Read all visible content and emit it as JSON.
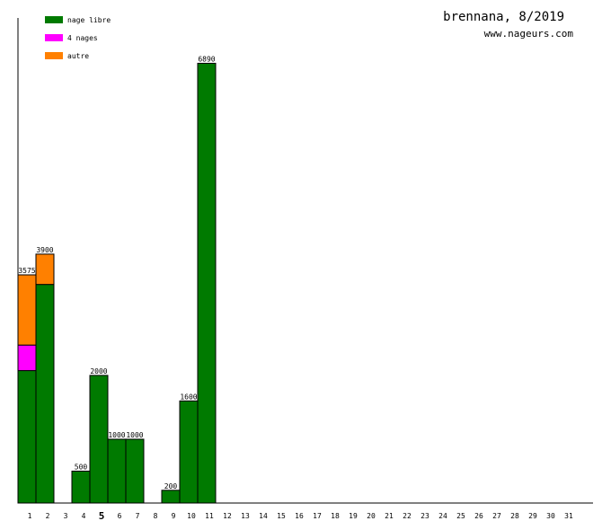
{
  "chart_data": {
    "type": "bar",
    "stacked": true,
    "title": "brennana, 8/2019",
    "subtitle": "www.nageurs.com",
    "categories": [
      "1",
      "2",
      "3",
      "4",
      "5",
      "6",
      "7",
      "8",
      "9",
      "10",
      "11",
      "12",
      "13",
      "14",
      "15",
      "16",
      "17",
      "18",
      "19",
      "20",
      "21",
      "22",
      "23",
      "24",
      "25",
      "26",
      "27",
      "28",
      "29",
      "30",
      "31"
    ],
    "highlighted_category": "5",
    "ylim": [
      0,
      7600
    ],
    "legend_position": "top-left",
    "grid": false,
    "series": [
      {
        "name": "nage libre",
        "color": "#007a00",
        "values": [
          2075,
          3425,
          0,
          500,
          2000,
          1000,
          1000,
          0,
          200,
          1600,
          6890,
          0,
          0,
          0,
          0,
          0,
          0,
          0,
          0,
          0,
          0,
          0,
          0,
          0,
          0,
          0,
          0,
          0,
          0,
          0,
          0
        ]
      },
      {
        "name": "4 nages",
        "color": "#ff00ff",
        "values": [
          400,
          0,
          0,
          0,
          0,
          0,
          0,
          0,
          0,
          0,
          0,
          0,
          0,
          0,
          0,
          0,
          0,
          0,
          0,
          0,
          0,
          0,
          0,
          0,
          0,
          0,
          0,
          0,
          0,
          0,
          0
        ]
      },
      {
        "name": "autre",
        "color": "#ff8000",
        "values": [
          1100,
          475,
          0,
          0,
          0,
          0,
          0,
          0,
          0,
          0,
          0,
          0,
          0,
          0,
          0,
          0,
          0,
          0,
          0,
          0,
          0,
          0,
          0,
          0,
          0,
          0,
          0,
          0,
          0,
          0,
          0
        ]
      }
    ],
    "totals": [
      3575,
      3900,
      0,
      500,
      2000,
      1000,
      1000,
      0,
      200,
      1600,
      6890,
      0,
      0,
      0,
      0,
      0,
      0,
      0,
      0,
      0,
      0,
      0,
      0,
      0,
      0,
      0,
      0,
      0,
      0,
      0,
      0
    ]
  }
}
